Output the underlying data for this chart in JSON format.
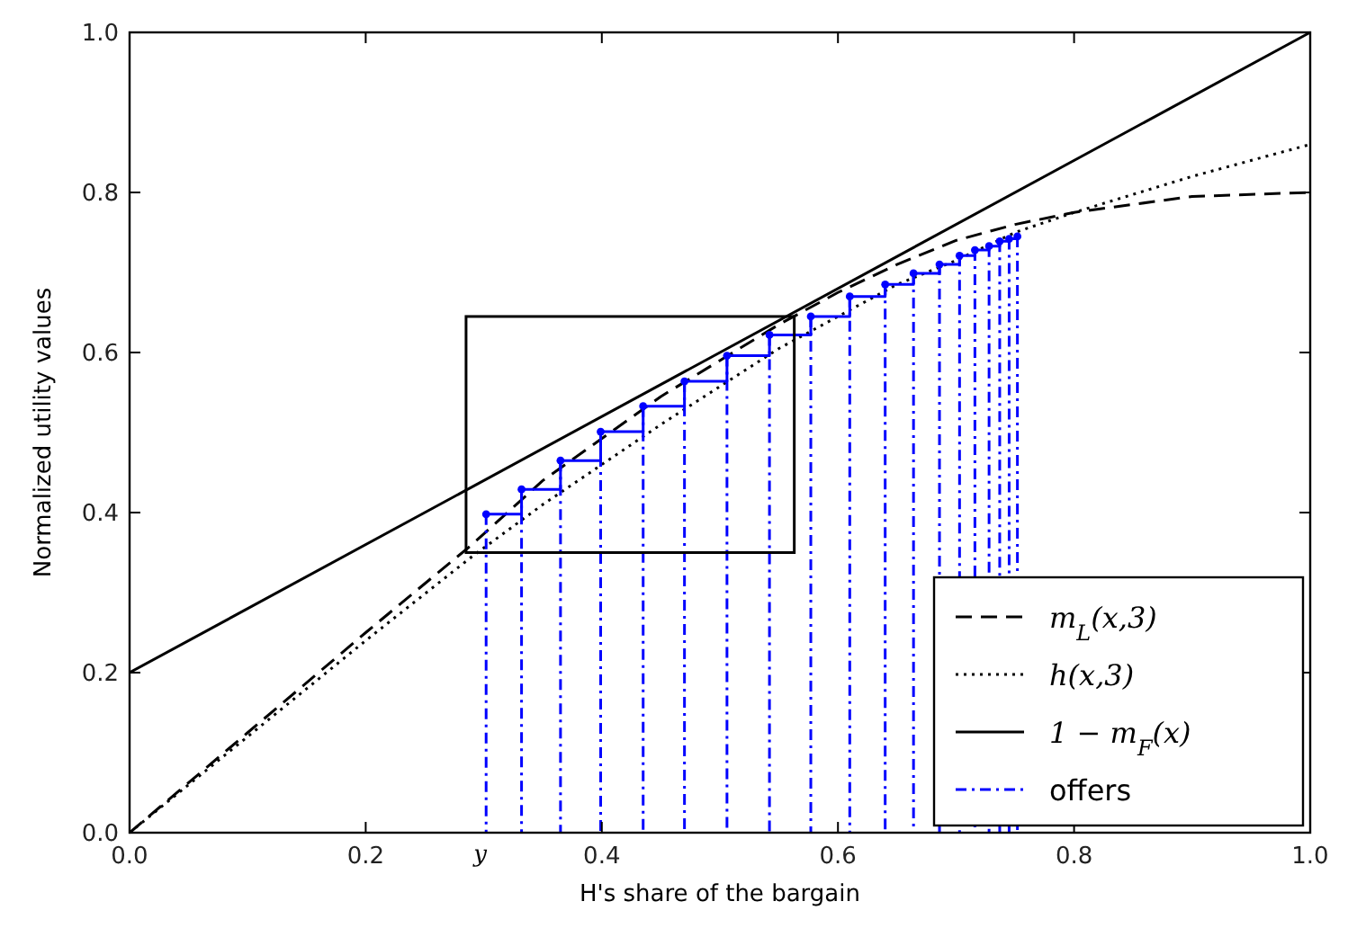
{
  "chart_data": {
    "type": "line",
    "xlabel": "H's share of the bargain",
    "ylabel": "Normalized utility values",
    "xlim": [
      0,
      1
    ],
    "ylim": [
      0,
      1
    ],
    "xticks": [
      {
        "value": 0,
        "label": "0.0"
      },
      {
        "value": 0.2,
        "label": "0.2"
      },
      {
        "value": 0.4,
        "label": "0.4"
      },
      {
        "value": 0.6,
        "label": "0.6"
      },
      {
        "value": 0.8,
        "label": "0.8"
      },
      {
        "value": 1,
        "label": "1.0"
      }
    ],
    "yticks": [
      {
        "value": 0,
        "label": "0.0"
      },
      {
        "value": 0.2,
        "label": "0.2"
      },
      {
        "value": 0.4,
        "label": "0.4"
      },
      {
        "value": 0.6,
        "label": "0.6"
      },
      {
        "value": 0.8,
        "label": "0.8"
      },
      {
        "value": 1,
        "label": "1.0"
      }
    ],
    "legend": "bottom right",
    "grid": false,
    "annotations": [
      "y"
    ],
    "series": [
      {
        "name": "m$_{L}$(x,3)",
        "color": "#000000",
        "line_style": "dashed",
        "x": [
          0,
          0.1,
          0.2,
          0.29,
          0.35,
          0.45,
          0.55,
          0.6,
          0.65,
          0.7,
          0.75,
          0.8,
          0.9,
          1
        ],
        "values": [
          0,
          0.125,
          0.25,
          0.36,
          0.44,
          0.545,
          0.635,
          0.675,
          0.71,
          0.74,
          0.76,
          0.775,
          0.795,
          0.8
        ]
      },
      {
        "name": "h(x,3)",
        "color": "#000000",
        "line_style": "dotted",
        "x": [
          0,
          0.1,
          0.2,
          0.29,
          0.35,
          0.45,
          0.55,
          0.6,
          0.65,
          0.7,
          0.75,
          0.8,
          0.9,
          1
        ],
        "values": [
          0,
          0.12,
          0.24,
          0.345,
          0.41,
          0.51,
          0.605,
          0.645,
          0.685,
          0.715,
          0.75,
          0.775,
          0.82,
          0.86
        ]
      },
      {
        "name": "1 − m$_{F}$(x)",
        "color": "#000000",
        "line_style": "solid",
        "x": [
          0,
          1
        ],
        "values": [
          0.2,
          1
        ]
      },
      {
        "name": "offers",
        "type": "lollipop",
        "marker": "circle",
        "color": "#0000ff",
        "line_style": "dashdot",
        "x": [
          0.302,
          0.332,
          0.365,
          0.399,
          0.435,
          0.47,
          0.506,
          0.542,
          0.577,
          0.61,
          0.64,
          0.664,
          0.686,
          0.703,
          0.716,
          0.728,
          0.737,
          0.745,
          0.752
        ],
        "values": [
          0.398,
          0.429,
          0.465,
          0.501,
          0.533,
          0.564,
          0.596,
          0.622,
          0.645,
          0.67,
          0.685,
          0.699,
          0.71,
          0.721,
          0.728,
          0.733,
          0.739,
          0.742,
          0.745
        ]
      },
      {
        "type": "step",
        "color": "#0000ff",
        "line_style": "solid",
        "x": [
          0.302,
          0.332,
          0.365,
          0.399,
          0.435,
          0.47,
          0.506,
          0.542,
          0.577,
          0.61,
          0.64,
          0.664,
          0.686,
          0.703,
          0.716,
          0.728,
          0.737,
          0.745,
          0.752
        ],
        "values": [
          0.398,
          0.429,
          0.465,
          0.501,
          0.533,
          0.564,
          0.596,
          0.622,
          0.645,
          0.67,
          0.685,
          0.699,
          0.71,
          0.721,
          0.728,
          0.733,
          0.739,
          0.742,
          0.745
        ]
      }
    ]
  }
}
